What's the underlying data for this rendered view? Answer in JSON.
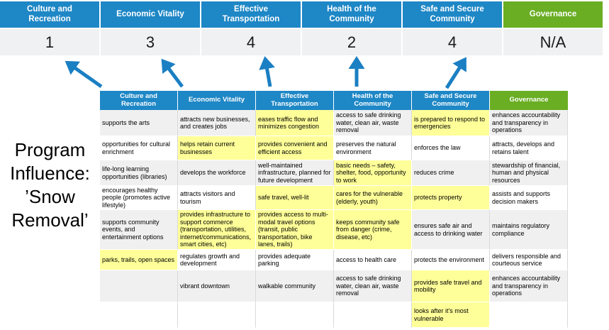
{
  "slide": {
    "program_label": {
      "lines": [
        "Program",
        "Influence:",
        "’Snow",
        "Removal’"
      ]
    },
    "priorities": [
      {
        "label": "Culture and Recreation",
        "score": "1",
        "theme": "blue"
      },
      {
        "label": "Economic Vitality",
        "score": "3",
        "theme": "blue"
      },
      {
        "label": "Effective Transportation",
        "score": "4",
        "theme": "blue"
      },
      {
        "label": "Health of the Community",
        "score": "2",
        "theme": "blue"
      },
      {
        "label": "Safe and Secure Community",
        "score": "4",
        "theme": "blue"
      },
      {
        "label": "Governance",
        "score": "N/A",
        "theme": "green"
      }
    ],
    "colors": {
      "header_blue": "#1e87c6",
      "header_green": "#6aae23",
      "highlight_yellow": "#ffff99",
      "band_gray": "#f0f0f1",
      "score_band_gray": "#f0f1f2",
      "arrow_blue": "#1b7fc3"
    },
    "matrix": {
      "headers": [
        {
          "label": "Culture and Recreation",
          "theme": "blue"
        },
        {
          "label": "Economic Vitality",
          "theme": "blue"
        },
        {
          "label": "Effective Transportation",
          "theme": "blue"
        },
        {
          "label": "Health of the Community",
          "theme": "blue"
        },
        {
          "label": "Safe and Secure Community",
          "theme": "blue"
        },
        {
          "label": "Governance",
          "theme": "green"
        }
      ],
      "rows": [
        {
          "cells": [
            {
              "text": "supports the arts"
            },
            {
              "text": "attracts new businesses, and creates jobs"
            },
            {
              "text": "eases traffic flow and minimizes congestion",
              "highlight": true
            },
            {
              "text": "access to safe drinking water, clean air, waste removal"
            },
            {
              "text": "is prepared to respond to emergencies",
              "highlight": true
            },
            {
              "text": "enhances accountability and transparency in operations"
            }
          ]
        },
        {
          "cells": [
            {
              "text": "opportunities for cultural enrichment"
            },
            {
              "text": "helps retain current businesses",
              "highlight": true
            },
            {
              "text": "provides convenient and efficient access",
              "highlight": true
            },
            {
              "text": "preserves the natural environment"
            },
            {
              "text": "enforces the law"
            },
            {
              "text": "attracts, develops and retains talent"
            }
          ]
        },
        {
          "cells": [
            {
              "text": "life-long learning opportunities (libraries)"
            },
            {
              "text": "develops the workforce"
            },
            {
              "text": "well-maintained infrastructure, planned for future development"
            },
            {
              "text": "basic needs – safety, shelter, food, opportunity to work",
              "highlight": true
            },
            {
              "text": "reduces crime"
            },
            {
              "text": "stewardship of financial, human and physical resources"
            }
          ]
        },
        {
          "cells": [
            {
              "text": "encourages healthy people (promotes active lifestyle)"
            },
            {
              "text": "attracts visitors and tourism"
            },
            {
              "text": "safe travel, well-lit",
              "highlight": true
            },
            {
              "text": "cares for the vulnerable (elderly, youth)",
              "highlight": true
            },
            {
              "text": "protects property",
              "highlight": true
            },
            {
              "text": "assists and supports decision makers"
            }
          ]
        },
        {
          "cells": [
            {
              "text": "supports community events, and entertainment options"
            },
            {
              "text": "provides infrastructure to support commerce (transportation, utilities, internet/communications, smart cities, etc)",
              "highlight": true
            },
            {
              "text": "provides access to multi-modal travel options (transit, public transportation, bike lanes, trails)",
              "highlight": true
            },
            {
              "text": "keeps community safe from danger (crime, disease, etc)",
              "highlight": true
            },
            {
              "text": "ensures safe air and access to drinking water"
            },
            {
              "text": "maintains regulatory compliance"
            }
          ]
        },
        {
          "cells": [
            {
              "text": "parks, trails, open spaces",
              "highlight": true
            },
            {
              "text": "regulates growth and development"
            },
            {
              "text": "provides adequate parking"
            },
            {
              "text": "access to health care"
            },
            {
              "text": "protects the environment"
            },
            {
              "text": "delivers responsible and courteous service"
            }
          ]
        },
        {
          "cells": [
            {
              "text": ""
            },
            {
              "text": "vibrant downtown"
            },
            {
              "text": "walkable community"
            },
            {
              "text": "access to safe drinking water, clean air, waste removal"
            },
            {
              "text": "provides safe travel and mobility",
              "highlight": true
            },
            {
              "text": "enhances accountability and transparency in operations"
            }
          ]
        },
        {
          "cells": [
            {
              "text": ""
            },
            {
              "text": ""
            },
            {
              "text": ""
            },
            {
              "text": ""
            },
            {
              "text": "looks after it's most vulnerable",
              "highlight": true
            },
            {
              "text": ""
            }
          ]
        }
      ]
    }
  }
}
